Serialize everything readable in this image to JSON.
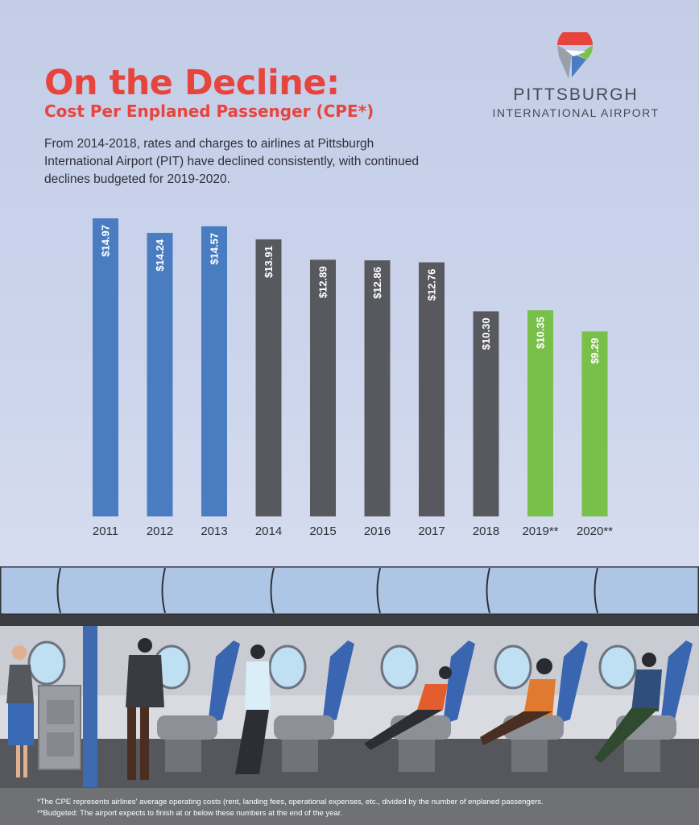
{
  "header": {
    "title": "On the Decline:",
    "subtitle": "Cost Per Enplaned Passenger (CPE*)",
    "intro": "From 2014-2018, rates and charges to airlines at Pittsburgh International Airport (PIT) have declined consistently, with continued declines budgeted for 2019-2020."
  },
  "logo": {
    "name": "PITTSBURGH",
    "sub": "INTERNATIONAL AIRPORT",
    "colors": [
      "#e8443e",
      "#7cc04b",
      "#4a7cc2",
      "#9aa0aa"
    ]
  },
  "chart_data": {
    "type": "bar",
    "categories": [
      "2011",
      "2012",
      "2013",
      "2014",
      "2015",
      "2016",
      "2017",
      "2018",
      "2019**",
      "2020**"
    ],
    "values": [
      14.97,
      14.24,
      14.57,
      13.91,
      12.89,
      12.86,
      12.76,
      10.3,
      10.35,
      9.29
    ],
    "value_labels": [
      "$14.97",
      "$14.24",
      "$14.57",
      "$13.91",
      "$12.89",
      "$12.86",
      "$12.76",
      "$10.30",
      "$10.35",
      "$9.29"
    ],
    "bar_colors": [
      "#4a7cc2",
      "#4a7cc2",
      "#4a7cc2",
      "#58595e",
      "#58595e",
      "#58595e",
      "#58595e",
      "#58595e",
      "#79c04b",
      "#79c04b"
    ],
    "title": "",
    "xlabel": "",
    "ylabel": "",
    "ylim": [
      0,
      14.97
    ],
    "grid": false,
    "legend": "none"
  },
  "footnotes": {
    "cpe": "*The CPE represents airlines' average operating costs (rent, landing fees, operational expenses, etc., divided by the number of enplaned passengers.",
    "budgeted": "**Budgeted: The airport expects to finish at or below these numbers at the end of the year."
  }
}
